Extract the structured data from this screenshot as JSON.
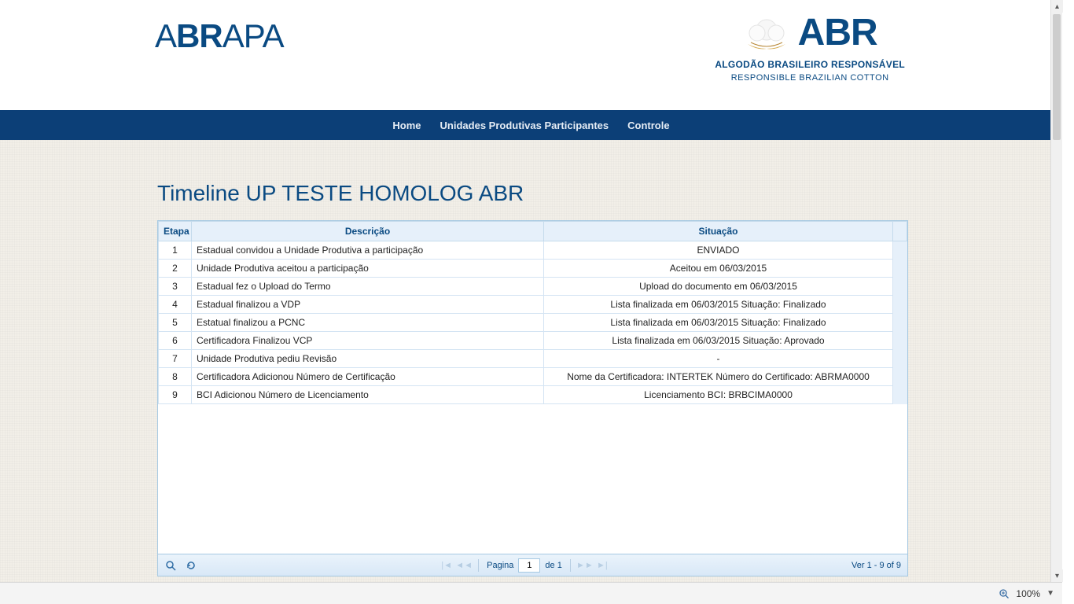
{
  "brand": {
    "left_logo_pre": "A",
    "left_logo_bold": "BR",
    "left_logo_post": "APA",
    "right_logo_text": "ABR",
    "right_subtitle1": "ALGODÃO BRASILEIRO RESPONSÁVEL",
    "right_subtitle2": "RESPONSIBLE BRAZILIAN COTTON",
    "colors": {
      "primary": "#0a4a82",
      "navbar_bg": "#0c3f77",
      "header_bg": "#e6f0fa",
      "border": "#a6c9e2",
      "cotton_gold": "#d4a94e",
      "cotton_white": "#f5f5f5"
    }
  },
  "nav": {
    "items": [
      {
        "label": "Home"
      },
      {
        "label": "Unidades Produtivas Participantes"
      },
      {
        "label": "Controle"
      }
    ]
  },
  "page": {
    "title": "Timeline UP TESTE HOMOLOG ABR"
  },
  "grid": {
    "columns": {
      "etapa": "Etapa",
      "descricao": "Descrição",
      "situacao": "Situação"
    },
    "rows": [
      {
        "etapa": "1",
        "descricao": "Estadual convidou a Unidade Produtiva a participação",
        "situacao": "ENVIADO"
      },
      {
        "etapa": "2",
        "descricao": "Unidade Produtiva aceitou a participação",
        "situacao": "Aceitou em 06/03/2015"
      },
      {
        "etapa": "3",
        "descricao": "Estadual fez o Upload do Termo",
        "situacao": "Upload do documento em 06/03/2015"
      },
      {
        "etapa": "4",
        "descricao": "Estadual finalizou a VDP",
        "situacao": "Lista finalizada em 06/03/2015 Situação: Finalizado"
      },
      {
        "etapa": "5",
        "descricao": "Estatual finalizou a PCNC",
        "situacao": "Lista finalizada em 06/03/2015 Situação: Finalizado"
      },
      {
        "etapa": "6",
        "descricao": "Certificadora Finalizou VCP",
        "situacao": "Lista finalizada em 06/03/2015 Situação: Aprovado"
      },
      {
        "etapa": "7",
        "descricao": "Unidade Produtiva pediu Revisão",
        "situacao": "-"
      },
      {
        "etapa": "8",
        "descricao": "Certificadora Adicionou Número de Certificação",
        "situacao": "Nome da Certificadora: INTERTEK Número do Certificado: ABRMA0000"
      },
      {
        "etapa": "9",
        "descricao": "BCI Adicionou Número de Licenciamento",
        "situacao": "Licenciamento BCI: BRBCIMA0000"
      }
    ]
  },
  "pager": {
    "page_label_pre": "Pagina",
    "page_current": "1",
    "page_label_post": "de 1",
    "view_text": "Ver 1 - 9 of 9"
  },
  "statusbar": {
    "zoom": "100%"
  }
}
